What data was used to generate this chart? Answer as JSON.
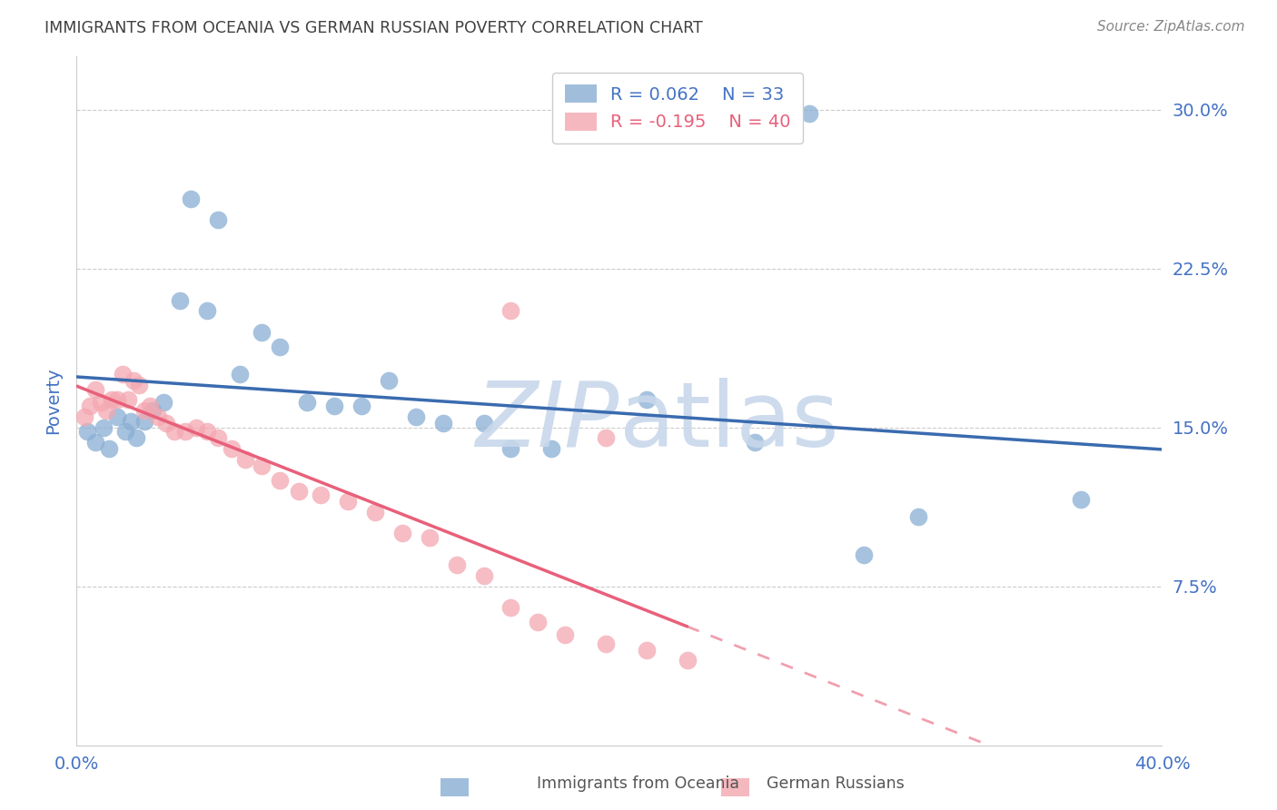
{
  "title": "IMMIGRANTS FROM OCEANIA VS GERMAN RUSSIAN POVERTY CORRELATION CHART",
  "source": "Source: ZipAtlas.com",
  "ylabel": "Poverty",
  "ytick_labels": [
    "7.5%",
    "15.0%",
    "22.5%",
    "30.0%"
  ],
  "ytick_values": [
    0.075,
    0.15,
    0.225,
    0.3
  ],
  "xrange": [
    0.0,
    0.4
  ],
  "yrange": [
    0.0,
    0.325
  ],
  "legend_r1": "R = 0.062",
  "legend_n1": "N = 33",
  "legend_r2": "R = -0.195",
  "legend_n2": "N = 40",
  "color_blue": "#89AED4",
  "color_pink": "#F4A7B0",
  "color_line_blue": "#3A6BAF",
  "color_line_pink": "#E8607A",
  "color_axis_label": "#4472C4",
  "color_title": "#404040",
  "color_source": "#888888",
  "color_watermark": "#C8D8EC",
  "background": "#FFFFFF",
  "blue_x": [
    0.004,
    0.007,
    0.01,
    0.012,
    0.015,
    0.018,
    0.02,
    0.022,
    0.025,
    0.028,
    0.032,
    0.038,
    0.042,
    0.048,
    0.052,
    0.06,
    0.068,
    0.075,
    0.085,
    0.095,
    0.105,
    0.115,
    0.125,
    0.135,
    0.15,
    0.16,
    0.175,
    0.21,
    0.25,
    0.29,
    0.31,
    0.37,
    0.27
  ],
  "blue_y": [
    0.148,
    0.143,
    0.15,
    0.14,
    0.155,
    0.148,
    0.153,
    0.145,
    0.153,
    0.158,
    0.162,
    0.21,
    0.258,
    0.205,
    0.248,
    0.175,
    0.195,
    0.188,
    0.162,
    0.16,
    0.16,
    0.172,
    0.155,
    0.152,
    0.152,
    0.14,
    0.14,
    0.163,
    0.143,
    0.09,
    0.108,
    0.116,
    0.298
  ],
  "pink_x": [
    0.003,
    0.005,
    0.007,
    0.009,
    0.011,
    0.013,
    0.015,
    0.017,
    0.019,
    0.021,
    0.023,
    0.025,
    0.027,
    0.03,
    0.033,
    0.036,
    0.04,
    0.044,
    0.048,
    0.052,
    0.057,
    0.062,
    0.068,
    0.075,
    0.082,
    0.09,
    0.1,
    0.11,
    0.12,
    0.13,
    0.14,
    0.15,
    0.16,
    0.17,
    0.18,
    0.195,
    0.21,
    0.225,
    0.16,
    0.195
  ],
  "pink_y": [
    0.155,
    0.16,
    0.168,
    0.162,
    0.158,
    0.163,
    0.163,
    0.175,
    0.163,
    0.172,
    0.17,
    0.158,
    0.16,
    0.155,
    0.152,
    0.148,
    0.148,
    0.15,
    0.148,
    0.145,
    0.14,
    0.135,
    0.132,
    0.125,
    0.12,
    0.118,
    0.115,
    0.11,
    0.1,
    0.098,
    0.085,
    0.08,
    0.065,
    0.058,
    0.052,
    0.048,
    0.045,
    0.04,
    0.205,
    0.145
  ]
}
